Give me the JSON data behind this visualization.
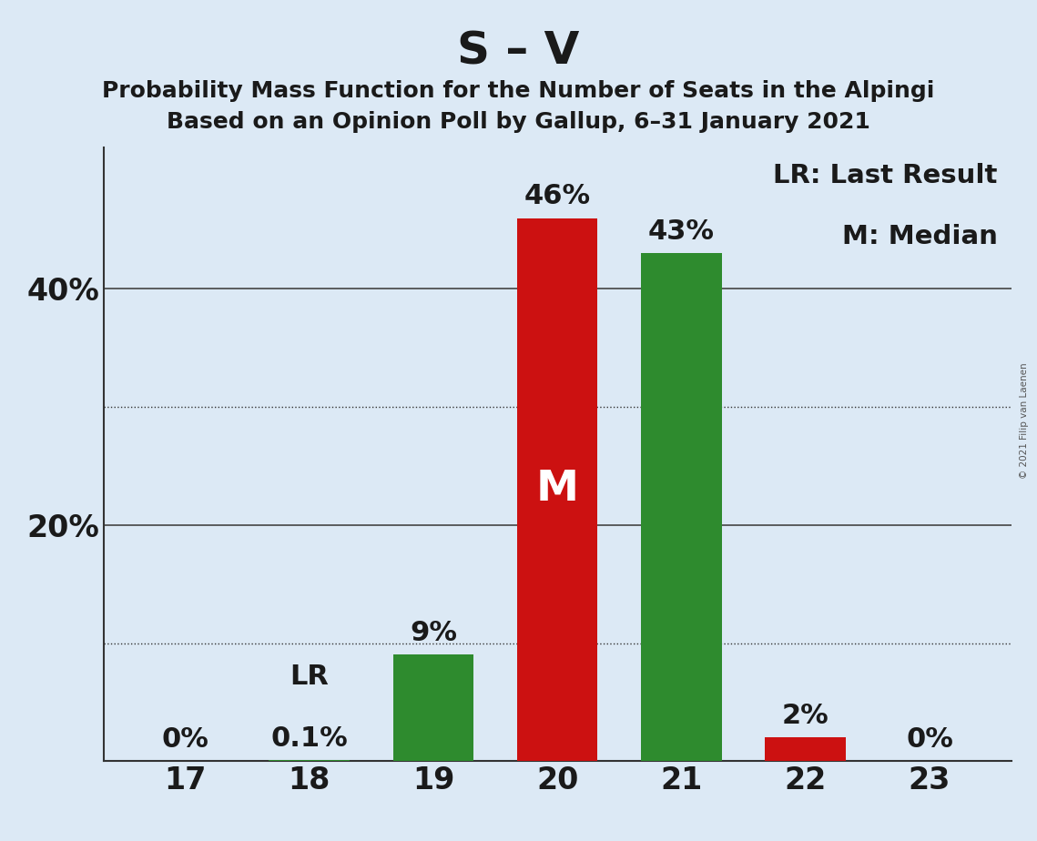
{
  "title": "S – V",
  "subtitle1": "Probability Mass Function for the Number of Seats in the Alpingi",
  "subtitle2": "Based on an Opinion Poll by Gallup, 6–31 January 2021",
  "categories": [
    17,
    18,
    19,
    20,
    21,
    22,
    23
  ],
  "values": [
    0.0,
    0.001,
    0.09,
    0.46,
    0.43,
    0.02,
    0.0
  ],
  "bar_colors": [
    "#2e8b2e",
    "#2e8b2e",
    "#2e8b2e",
    "#cc1111",
    "#2e8b2e",
    "#cc1111",
    "#2e8b2e"
  ],
  "labels": [
    "0%",
    "0.1%",
    "9%",
    "46%",
    "43%",
    "2%",
    "0%"
  ],
  "median_bar": 3,
  "lr_bar": 1,
  "background_color": "#dce9f5",
  "title_fontsize": 36,
  "subtitle_fontsize": 18,
  "label_fontsize": 22,
  "tick_fontsize": 24,
  "legend_fontsize": 21,
  "copyright_text": "© 2021 Filip van Laenen",
  "ylim": [
    0,
    0.52
  ],
  "yticks": [
    0.2,
    0.4
  ],
  "ytick_labels": [
    "20%",
    "40%"
  ],
  "dotted_yticks": [
    0.1,
    0.3
  ],
  "solid_yticks": [
    0.2,
    0.4
  ]
}
